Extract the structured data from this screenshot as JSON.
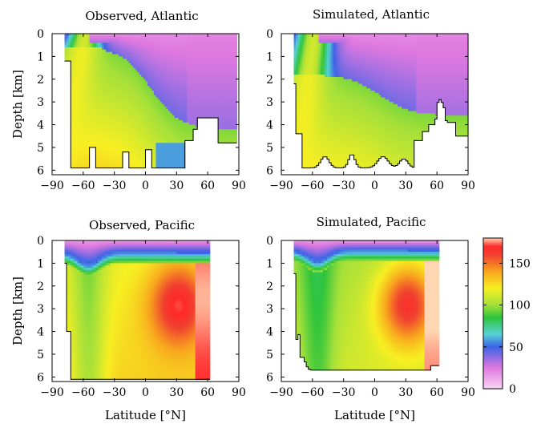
{
  "figure": {
    "colorbar": {
      "ticks": [
        0,
        50,
        100,
        150
      ],
      "range": [
        0,
        180
      ],
      "stops": [
        {
          "v": 0,
          "c": "#f7d4f3"
        },
        {
          "v": 25,
          "c": "#df78df"
        },
        {
          "v": 50,
          "c": "#3d63e6"
        },
        {
          "v": 65,
          "c": "#58d2d6"
        },
        {
          "v": 85,
          "c": "#2ec43c"
        },
        {
          "v": 100,
          "c": "#a4e03a"
        },
        {
          "v": 120,
          "c": "#f7ef22"
        },
        {
          "v": 140,
          "c": "#f8a51e"
        },
        {
          "v": 160,
          "c": "#f04030"
        },
        {
          "v": 170,
          "c": "#ff2a2a"
        },
        {
          "v": 180,
          "c": "#ffd7b3"
        }
      ]
    }
  },
  "chart_data": [
    {
      "type": "heatmap",
      "title": "Observed, Atlantic",
      "xlabel": "",
      "ylabel": "Depth [km]",
      "xlim": [
        -90,
        90
      ],
      "ylim": [
        6.2,
        0
      ],
      "xticks": [
        "−90",
        "−60",
        "−30",
        "0",
        "30",
        "60",
        "90"
      ],
      "yticks": [
        "0",
        "1",
        "2",
        "3",
        "4",
        "5",
        "6"
      ],
      "ocean": "atlantic",
      "kind": "observed",
      "lat_range": [
        -78,
        88
      ]
    },
    {
      "type": "heatmap",
      "title": "Simulated, Atlantic",
      "xlabel": "",
      "ylabel": "",
      "xlim": [
        -90,
        90
      ],
      "ylim": [
        6.2,
        0
      ],
      "xticks": [
        "−90",
        "−60",
        "−30",
        "0",
        "30",
        "60",
        "90"
      ],
      "yticks": [
        "0",
        "1",
        "2",
        "3",
        "4",
        "5",
        "6"
      ],
      "ocean": "atlantic",
      "kind": "simulated",
      "lat_range": [
        -78,
        90
      ]
    },
    {
      "type": "heatmap",
      "title": "Observed, Pacific",
      "xlabel": "Latitude [°N]",
      "ylabel": "Depth [km]",
      "xlim": [
        -90,
        90
      ],
      "ylim": [
        6.2,
        0
      ],
      "xticks": [
        "−90",
        "−60",
        "−30",
        "0",
        "30",
        "60",
        "90"
      ],
      "yticks": [
        "0",
        "1",
        "2",
        "3",
        "4",
        "5",
        "6"
      ],
      "ocean": "pacific",
      "kind": "observed",
      "lat_range": [
        -78,
        62
      ]
    },
    {
      "type": "heatmap",
      "title": "Simulated, Pacific",
      "xlabel": "Latitude [°N]",
      "ylabel": "",
      "xlim": [
        -90,
        90
      ],
      "ylim": [
        6.2,
        0
      ],
      "xticks": [
        "−90",
        "−60",
        "−30",
        "0",
        "30",
        "60",
        "90"
      ],
      "yticks": [
        "0",
        "1",
        "2",
        "3",
        "4",
        "5",
        "6"
      ],
      "ocean": "pacific",
      "kind": "simulated",
      "lat_range": [
        -78,
        62
      ]
    }
  ]
}
